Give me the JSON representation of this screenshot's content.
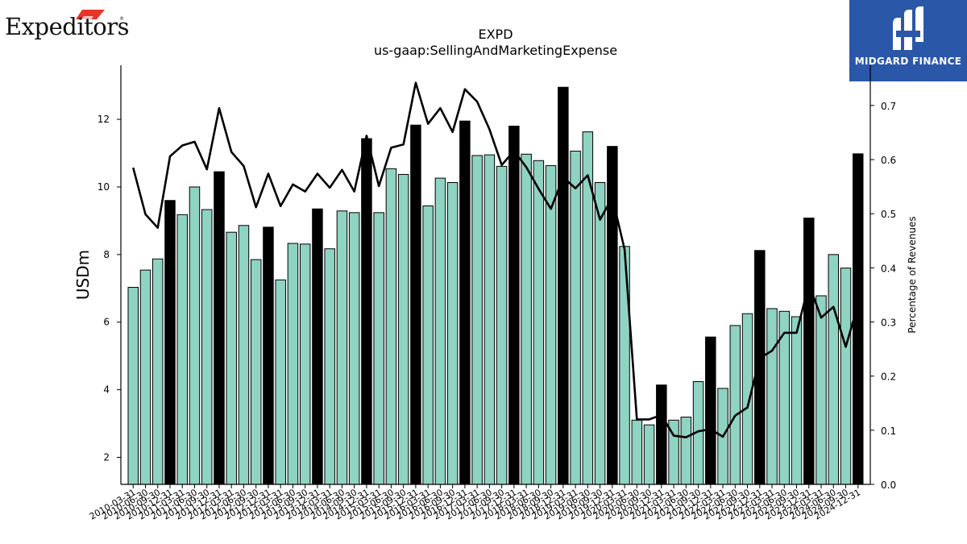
{
  "logos": {
    "left_brand": "Expeditors",
    "left_brand_mark": "®",
    "right_brand": "MIDGARD FINANCE"
  },
  "colors": {
    "quarter_bar": "#8fd3c2",
    "annual_bar": "#000000",
    "line": "#000000",
    "right_logo_bg": "#2b57a8",
    "left_logo_flag": "#e8342a"
  },
  "chart_data": {
    "type": "bar",
    "title": "EXPD",
    "subtitle": "us-gaap:SellingAndMarketingExpense",
    "ylabel": "USDm",
    "y2label": "Percentage of Revenues",
    "ylim": [
      1.2,
      13.6
    ],
    "y2lim": [
      0.0,
      0.7742
    ],
    "yticks": [
      2,
      4,
      6,
      8,
      10,
      12
    ],
    "y2ticks": [
      0.0,
      0.1,
      0.2,
      0.3,
      0.4,
      0.5,
      0.6,
      0.7
    ],
    "y2tick_labels": [
      "0.0",
      "0.1",
      "0.2",
      "0.3",
      "0.4",
      "0.5",
      "0.6",
      "0.7"
    ],
    "categories": [
      "2010-03-31",
      "2010-06-30",
      "2010-09-30",
      "2010-12-31",
      "2011-03-31",
      "2011-06-30",
      "2011-09-30",
      "2011-12-31",
      "2012-03-31",
      "2012-06-30",
      "2012-09-30",
      "2012-12-31",
      "2013-03-31",
      "2013-06-30",
      "2013-09-30",
      "2013-12-31",
      "2014-03-31",
      "2014-06-30",
      "2014-09-30",
      "2014-12-31",
      "2015-03-31",
      "2015-06-30",
      "2015-09-30",
      "2015-12-31",
      "2016-03-31",
      "2016-06-30",
      "2016-09-30",
      "2016-12-31",
      "2017-03-31",
      "2017-06-30",
      "2017-09-30",
      "2017-12-31",
      "2018-03-31",
      "2018-06-30",
      "2018-09-30",
      "2018-12-31",
      "2019-03-31",
      "2019-06-30",
      "2019-09-30",
      "2019-12-31",
      "2020-03-31",
      "2020-06-30",
      "2020-09-30",
      "2020-12-31",
      "2021-03-31",
      "2021-06-30",
      "2021-09-30",
      "2021-12-31",
      "2022-03-31",
      "2022-06-30",
      "2022-09-30",
      "2022-12-31",
      "2023-03-31",
      "2023-06-30",
      "2023-09-30",
      "2023-12-31",
      "2024-03-31",
      "2024-06-30",
      "2024-09-30",
      "2024-12-31"
    ],
    "series": [
      {
        "kind": "bar",
        "annual_flags": [
          0,
          0,
          0,
          1,
          0,
          0,
          0,
          1,
          0,
          0,
          0,
          1,
          0,
          0,
          0,
          1,
          0,
          0,
          0,
          1,
          0,
          0,
          0,
          1,
          0,
          0,
          0,
          1,
          0,
          0,
          0,
          1,
          0,
          0,
          0,
          1,
          0,
          0,
          0,
          1,
          0,
          0,
          0,
          1,
          0,
          0,
          0,
          1,
          0,
          0,
          0,
          1,
          0,
          0,
          0,
          1,
          0,
          0,
          0,
          1
        ],
        "values": [
          7.03,
          7.54,
          7.87,
          9.6,
          9.18,
          10.0,
          9.33,
          10.45,
          8.66,
          8.86,
          7.85,
          8.81,
          7.25,
          8.33,
          8.31,
          9.35,
          8.17,
          9.29,
          9.24,
          11.43,
          9.24,
          10.54,
          10.37,
          11.83,
          9.44,
          10.26,
          10.13,
          11.95,
          10.93,
          10.95,
          10.61,
          11.8,
          10.97,
          10.78,
          10.63,
          12.95,
          11.06,
          11.63,
          10.13,
          11.2,
          8.24,
          3.1,
          2.96,
          4.14,
          3.1,
          3.19,
          4.24,
          5.56,
          4.04,
          5.9,
          6.25,
          8.12,
          6.4,
          6.32,
          6.16,
          9.08,
          6.78,
          8.0,
          7.6,
          10.98
        ]
      },
      {
        "kind": "line",
        "axis": "right",
        "values": [
          0.585,
          0.499,
          0.474,
          0.606,
          0.626,
          0.633,
          0.582,
          0.695,
          0.614,
          0.588,
          0.512,
          0.574,
          0.514,
          0.554,
          0.541,
          0.574,
          0.548,
          0.581,
          0.541,
          0.644,
          0.551,
          0.622,
          0.628,
          0.742,
          0.666,
          0.695,
          0.651,
          0.73,
          0.707,
          0.656,
          0.59,
          0.616,
          0.586,
          0.546,
          0.509,
          0.567,
          0.547,
          0.571,
          0.489,
          0.53,
          0.434,
          0.12,
          0.12,
          0.128,
          0.09,
          0.087,
          0.098,
          0.102,
          0.088,
          0.127,
          0.142,
          0.233,
          0.247,
          0.28,
          0.28,
          0.37,
          0.308,
          0.328,
          0.254,
          0.332
        ]
      }
    ]
  }
}
